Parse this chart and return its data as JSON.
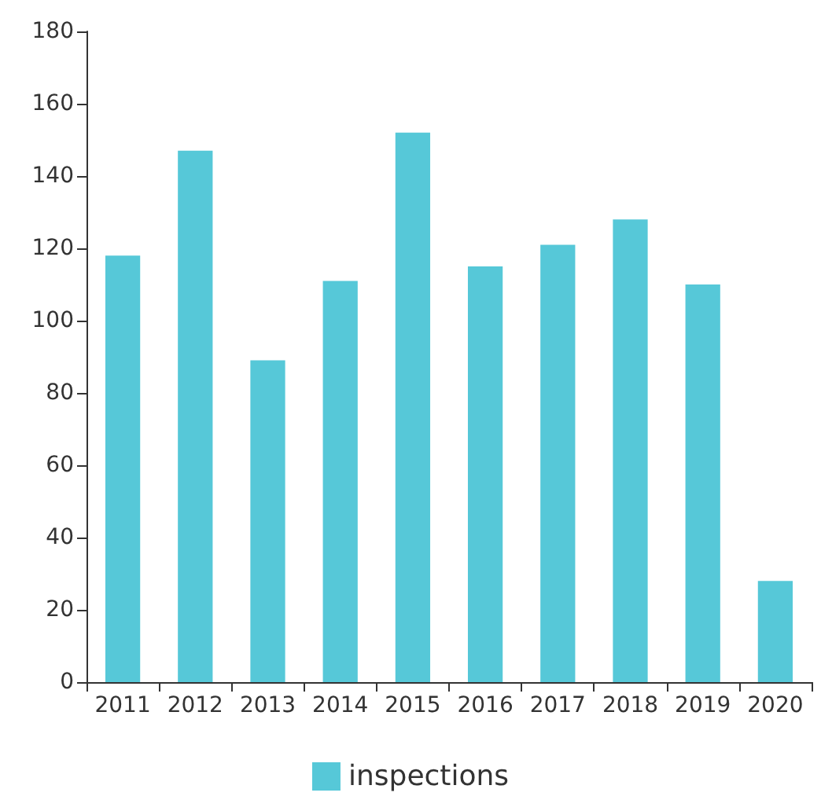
{
  "chart_data": {
    "type": "bar",
    "categories": [
      "2011",
      "2012",
      "2013",
      "2014",
      "2015",
      "2016",
      "2017",
      "2018",
      "2019",
      "2020"
    ],
    "series": [
      {
        "name": "inspections",
        "color": "#56c8d8",
        "values": [
          118,
          147,
          89,
          111,
          152,
          115,
          121,
          128,
          110,
          28
        ]
      }
    ],
    "ylim": [
      0,
      180
    ],
    "yticks": [
      0,
      20,
      40,
      60,
      80,
      100,
      120,
      140,
      160,
      180
    ],
    "grid": false,
    "legend": "bottom"
  }
}
